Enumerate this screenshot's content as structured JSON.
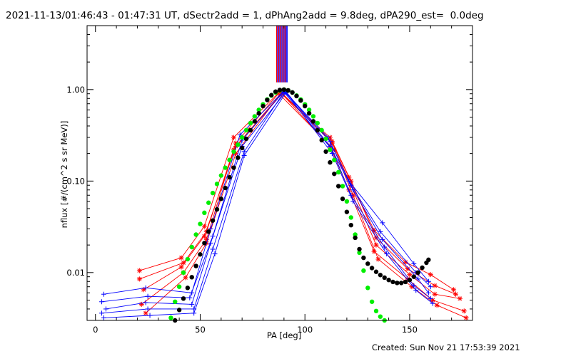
{
  "title": "2021-11-13/01:46:43 - 01:47:31 UT, dSectr2add = 1, dPhAng2add = 9.8deg, dPA290_est=  0.0deg",
  "footer": "Created: Sun Nov 21 17:53:39 2021",
  "colors": {
    "red": "#ff0000",
    "blue": "#0000ff",
    "black": "#000000",
    "green": "#00ee00"
  },
  "chart_data": {
    "type": "line",
    "xlabel": "PA [deg]",
    "ylabel": "nflux [#/(cm^2 s sr MeV)]",
    "xlim": [
      -4,
      180
    ],
    "ylim": [
      0.003,
      5.0
    ],
    "yscale": "log",
    "xticks": [
      0,
      50,
      100,
      150
    ],
    "xtick_labels": [
      "0",
      "50",
      "100",
      "150"
    ],
    "yticks": [
      0.01,
      0.1,
      1.0
    ],
    "ytick_labels": [
      "0.01",
      "0.10",
      "1.00"
    ],
    "series": [
      {
        "color": "red",
        "marker": "asterisk",
        "x": [
          21,
          41,
          52,
          66,
          88,
          112,
          121,
          133,
          148,
          160,
          171
        ],
        "y": [
          0.0105,
          0.0145,
          0.032,
          0.3,
          0.95,
          0.3,
          0.11,
          0.029,
          0.013,
          0.0095,
          0.0065
        ]
      },
      {
        "color": "red",
        "marker": "asterisk",
        "x": [
          21,
          42,
          53,
          67,
          88,
          113,
          122,
          134,
          149,
          162,
          172
        ],
        "y": [
          0.0085,
          0.0128,
          0.028,
          0.26,
          0.94,
          0.27,
          0.1,
          0.024,
          0.011,
          0.0072,
          0.0058
        ]
      },
      {
        "color": "red",
        "marker": "asterisk",
        "x": [
          23,
          41,
          52,
          67,
          89,
          113,
          122,
          134,
          150,
          162,
          174
        ],
        "y": [
          0.0065,
          0.0115,
          0.025,
          0.24,
          0.92,
          0.26,
          0.09,
          0.02,
          0.0095,
          0.0058,
          0.0052
        ]
      },
      {
        "color": "red",
        "marker": "asterisk",
        "x": [
          22,
          42,
          53,
          66,
          89,
          112,
          121,
          133,
          149,
          161,
          176
        ],
        "y": [
          0.0045,
          0.01,
          0.023,
          0.22,
          0.9,
          0.24,
          0.08,
          0.017,
          0.0085,
          0.005,
          0.0038
        ]
      },
      {
        "color": "red",
        "marker": "asterisk",
        "x": [
          24,
          43,
          53,
          67,
          88,
          114,
          123,
          135,
          151,
          163,
          177
        ],
        "y": [
          0.0036,
          0.0088,
          0.021,
          0.2,
          0.88,
          0.22,
          0.07,
          0.014,
          0.007,
          0.0044,
          0.0032
        ]
      },
      {
        "color": "blue",
        "marker": "cross",
        "x": [
          4,
          24,
          46,
          55,
          69,
          90,
          111,
          121,
          137,
          152,
          159
        ],
        "y": [
          0.0058,
          0.0068,
          0.006,
          0.03,
          0.32,
          0.97,
          0.3,
          0.1,
          0.035,
          0.0125,
          0.008
        ]
      },
      {
        "color": "blue",
        "marker": "cross",
        "x": [
          3,
          25,
          45,
          56,
          70,
          90,
          112,
          122,
          136,
          153,
          160
        ],
        "y": [
          0.0048,
          0.0055,
          0.0053,
          0.025,
          0.28,
          0.96,
          0.27,
          0.09,
          0.028,
          0.01,
          0.007
        ]
      },
      {
        "color": "blue",
        "marker": "cross",
        "x": [
          5,
          24,
          46,
          55,
          70,
          91,
          112,
          123,
          137,
          154,
          159
        ],
        "y": [
          0.004,
          0.0047,
          0.0045,
          0.021,
          0.24,
          0.95,
          0.24,
          0.08,
          0.023,
          0.0085,
          0.006
        ]
      },
      {
        "color": "blue",
        "marker": "cross",
        "x": [
          3,
          25,
          47,
          56,
          71,
          90,
          113,
          122,
          138,
          152,
          160
        ],
        "y": [
          0.0036,
          0.004,
          0.004,
          0.018,
          0.21,
          0.94,
          0.22,
          0.07,
          0.019,
          0.0072,
          0.0052
        ]
      },
      {
        "color": "blue",
        "marker": "cross",
        "x": [
          4,
          26,
          47,
          57,
          71,
          91,
          113,
          123,
          139,
          153,
          161
        ],
        "y": [
          0.0032,
          0.0034,
          0.0036,
          0.016,
          0.19,
          0.93,
          0.2,
          0.06,
          0.016,
          0.0064,
          0.0046
        ]
      }
    ],
    "fits": [
      {
        "color": "green",
        "marker": "dot",
        "x": [
          36,
          38,
          40,
          42,
          44,
          46,
          48,
          50,
          52,
          54,
          56,
          58,
          60,
          62,
          64,
          66,
          68,
          70,
          72,
          74,
          76,
          78,
          80,
          82,
          84,
          86,
          88,
          90,
          92,
          94,
          96,
          98,
          100,
          102,
          104,
          106,
          108,
          110,
          112,
          114,
          116,
          118,
          120,
          122,
          124,
          126,
          128,
          130,
          132,
          134,
          136,
          138
        ],
        "y": [
          0.0032,
          0.0048,
          0.007,
          0.01,
          0.014,
          0.019,
          0.026,
          0.034,
          0.045,
          0.058,
          0.074,
          0.093,
          0.115,
          0.14,
          0.17,
          0.21,
          0.25,
          0.3,
          0.36,
          0.43,
          0.51,
          0.6,
          0.69,
          0.78,
          0.86,
          0.93,
          0.98,
          1.0,
          0.98,
          0.93,
          0.86,
          0.78,
          0.69,
          0.6,
          0.51,
          0.43,
          0.36,
          0.29,
          0.22,
          0.17,
          0.125,
          0.088,
          0.06,
          0.04,
          0.026,
          0.0165,
          0.0105,
          0.0068,
          0.0048,
          0.0038,
          0.0033,
          0.003
        ]
      },
      {
        "color": "black",
        "marker": "dot",
        "x": [
          38,
          40,
          42,
          44,
          46,
          48,
          50,
          52,
          54,
          56,
          58,
          60,
          62,
          64,
          66,
          68,
          70,
          72,
          74,
          76,
          78,
          80,
          82,
          84,
          86,
          88,
          90,
          92,
          94,
          96,
          98,
          100,
          102,
          104,
          106,
          108,
          110,
          112,
          114,
          116,
          118,
          120,
          122,
          124,
          126,
          128,
          130,
          132,
          134,
          136,
          138,
          140,
          142,
          144,
          146,
          148,
          150,
          152,
          154,
          156,
          158,
          159
        ],
        "y": [
          0.003,
          0.0039,
          0.0052,
          0.0068,
          0.0089,
          0.0118,
          0.0158,
          0.021,
          0.028,
          0.037,
          0.049,
          0.064,
          0.084,
          0.11,
          0.14,
          0.18,
          0.23,
          0.29,
          0.36,
          0.45,
          0.55,
          0.66,
          0.77,
          0.87,
          0.95,
          0.99,
          1.0,
          0.98,
          0.93,
          0.85,
          0.76,
          0.66,
          0.55,
          0.45,
          0.36,
          0.28,
          0.21,
          0.16,
          0.12,
          0.088,
          0.064,
          0.046,
          0.033,
          0.024,
          0.018,
          0.0145,
          0.0125,
          0.0112,
          0.0102,
          0.0094,
          0.0088,
          0.0083,
          0.0079,
          0.0077,
          0.0077,
          0.0079,
          0.0083,
          0.009,
          0.01,
          0.0113,
          0.0128,
          0.0138
        ]
      }
    ],
    "vertical_bars": {
      "x": [
        86.5,
        87,
        87.5,
        88,
        88.5,
        89,
        89.5,
        90,
        90.5,
        91,
        91.5
      ],
      "colors": [
        "red",
        "blue",
        "red",
        "blue",
        "red",
        "blue",
        "red",
        "blue",
        "red",
        "blue",
        "blue"
      ],
      "y_bottom": 1.2
    }
  }
}
